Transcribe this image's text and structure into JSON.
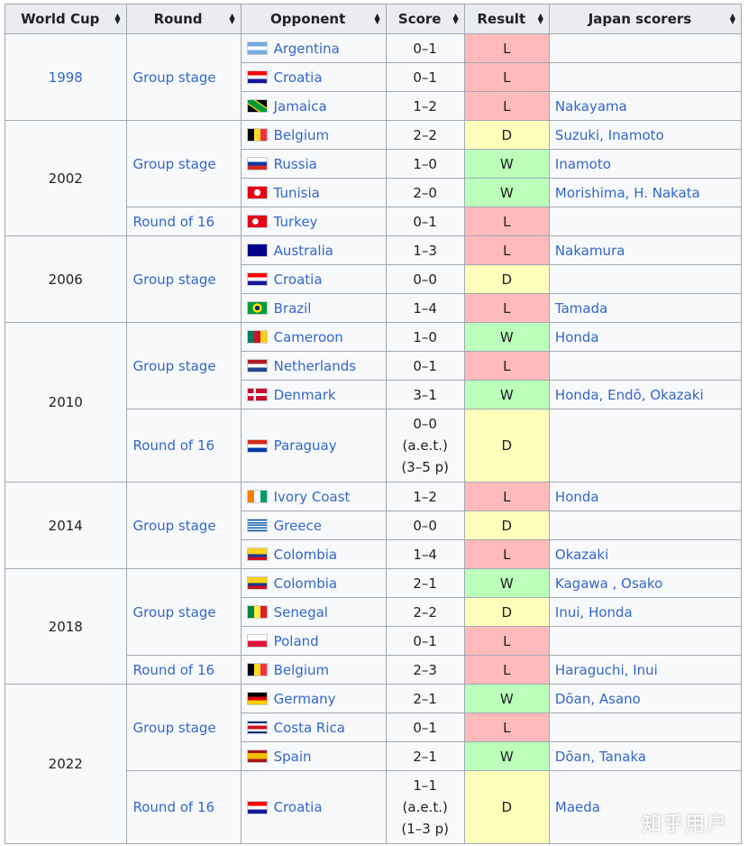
{
  "headers": [
    "World Cup",
    "Round",
    "Opponent",
    "Score",
    "Result",
    "Japan scorers"
  ],
  "sort_icon": "sort-icon",
  "years": [
    {
      "year": "1998",
      "rounds": [
        {
          "round": "Group stage",
          "matches": [
            {
              "opponent": "Argentina",
              "flag": "argentina-flag",
              "score": [
                "0–1"
              ],
              "result": "L",
              "scorers": ""
            },
            {
              "opponent": "Croatia",
              "flag": "croatia-flag",
              "score": [
                "0–1"
              ],
              "result": "L",
              "scorers": ""
            },
            {
              "opponent": "Jamaica",
              "flag": "jamaica-flag",
              "score": [
                "1–2"
              ],
              "result": "L",
              "scorers": "Nakayama"
            }
          ]
        }
      ]
    },
    {
      "year": "2002",
      "rounds": [
        {
          "round": "Group stage",
          "matches": [
            {
              "opponent": "Belgium",
              "flag": "belgium-flag",
              "score": [
                "2–2"
              ],
              "result": "D",
              "scorers": "Suzuki, Inamoto"
            },
            {
              "opponent": "Russia",
              "flag": "russia-flag",
              "score": [
                "1–0"
              ],
              "result": "W",
              "scorers": "Inamoto"
            },
            {
              "opponent": "Tunisia",
              "flag": "tunisia-flag",
              "score": [
                "2–0"
              ],
              "result": "W",
              "scorers": "Morishima, H. Nakata"
            }
          ]
        },
        {
          "round": "Round of 16",
          "matches": [
            {
              "opponent": "Turkey",
              "flag": "turkey-flag",
              "score": [
                "0–1"
              ],
              "result": "L",
              "scorers": ""
            }
          ]
        }
      ]
    },
    {
      "year": "2006",
      "rounds": [
        {
          "round": "Group stage",
          "matches": [
            {
              "opponent": "Australia",
              "flag": "australia-flag",
              "score": [
                "1–3"
              ],
              "result": "L",
              "scorers": "Nakamura"
            },
            {
              "opponent": "Croatia",
              "flag": "croatia-flag",
              "score": [
                "0–0"
              ],
              "result": "D",
              "scorers": ""
            },
            {
              "opponent": "Brazil",
              "flag": "brazil-flag",
              "score": [
                "1–4"
              ],
              "result": "L",
              "scorers": "Tamada"
            }
          ]
        }
      ]
    },
    {
      "year": "2010",
      "rounds": [
        {
          "round": "Group stage",
          "matches": [
            {
              "opponent": "Cameroon",
              "flag": "cameroon-flag",
              "score": [
                "1–0"
              ],
              "result": "W",
              "scorers": "Honda"
            },
            {
              "opponent": "Netherlands",
              "flag": "netherlands-flag",
              "score": [
                "0–1"
              ],
              "result": "L",
              "scorers": ""
            },
            {
              "opponent": "Denmark",
              "flag": "denmark-flag",
              "score": [
                "3–1"
              ],
              "result": "W",
              "scorers": "Honda, Endō, Okazaki"
            }
          ]
        },
        {
          "round": "Round of 16",
          "matches": [
            {
              "opponent": "Paraguay",
              "flag": "paraguay-flag",
              "score": [
                "0–0",
                "(a.e.t.)",
                "(3–5 p)"
              ],
              "result": "D",
              "scorers": ""
            }
          ]
        }
      ]
    },
    {
      "year": "2014",
      "rounds": [
        {
          "round": "Group stage",
          "matches": [
            {
              "opponent": "Ivory Coast",
              "flag": "ivory-coast-flag",
              "score": [
                "1–2"
              ],
              "result": "L",
              "scorers": "Honda"
            },
            {
              "opponent": "Greece",
              "flag": "greece-flag",
              "score": [
                "0–0"
              ],
              "result": "D",
              "scorers": ""
            },
            {
              "opponent": "Colombia",
              "flag": "colombia-flag",
              "score": [
                "1–4"
              ],
              "result": "L",
              "scorers": "Okazaki"
            }
          ]
        }
      ]
    },
    {
      "year": "2018",
      "rounds": [
        {
          "round": "Group stage",
          "matches": [
            {
              "opponent": "Colombia",
              "flag": "colombia-flag",
              "score": [
                "2–1"
              ],
              "result": "W",
              "scorers": "Kagawa , Osako"
            },
            {
              "opponent": "Senegal",
              "flag": "senegal-flag",
              "score": [
                "2–2"
              ],
              "result": "D",
              "scorers": "Inui, Honda"
            },
            {
              "opponent": "Poland",
              "flag": "poland-flag",
              "score": [
                "0–1"
              ],
              "result": "L",
              "scorers": ""
            }
          ]
        },
        {
          "round": "Round of 16",
          "matches": [
            {
              "opponent": "Belgium",
              "flag": "belgium-flag",
              "score": [
                "2–3"
              ],
              "result": "L",
              "scorers": "Haraguchi, Inui"
            }
          ]
        }
      ]
    },
    {
      "year": "2022",
      "rounds": [
        {
          "round": "Group stage",
          "matches": [
            {
              "opponent": "Germany",
              "flag": "germany-flag",
              "score": [
                "2–1"
              ],
              "result": "W",
              "scorers": "Dōan, Asano"
            },
            {
              "opponent": "Costa Rica",
              "flag": "costa-rica-flag",
              "score": [
                "0–1"
              ],
              "result": "L",
              "scorers": ""
            },
            {
              "opponent": "Spain",
              "flag": "spain-flag",
              "score": [
                "2–1"
              ],
              "result": "W",
              "scorers": "Dōan, Tanaka"
            }
          ]
        },
        {
          "round": "Round of 16",
          "matches": [
            {
              "opponent": "Croatia",
              "flag": "croatia-flag",
              "score": [
                "1–1",
                "(a.e.t.)",
                "(1–3 p)"
              ],
              "result": "D",
              "scorers": "Maeda"
            }
          ]
        }
      ]
    }
  ],
  "colors": {
    "link": "#3366cc",
    "loss": "#ffbbbb",
    "win": "#bbffbb",
    "draw": "#ffffbb",
    "header": "#eaecf0",
    "border": "#a2a9b1"
  },
  "watermark": "知乎用户"
}
